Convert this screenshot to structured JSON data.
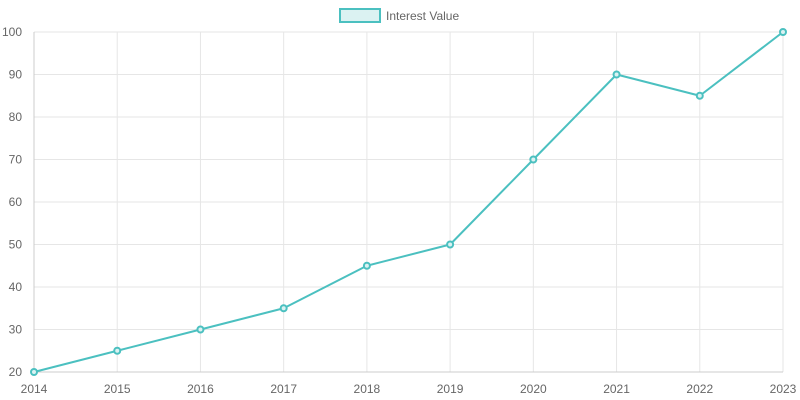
{
  "chart_data": {
    "type": "line",
    "categories": [
      "2014",
      "2015",
      "2016",
      "2017",
      "2018",
      "2019",
      "2020",
      "2021",
      "2022",
      "2023"
    ],
    "series": [
      {
        "name": "Interest Value",
        "values": [
          20,
          25,
          30,
          35,
          45,
          50,
          70,
          90,
          85,
          100
        ],
        "color": "#4bc0c0",
        "fill": "#dbf2f2"
      }
    ],
    "ylim": [
      20,
      100
    ],
    "yticks": [
      "100",
      "90",
      "80",
      "70",
      "60",
      "50",
      "40",
      "30",
      "20"
    ],
    "grid": true,
    "legend_position": "top-center",
    "title": "",
    "xlabel": "",
    "ylabel": ""
  }
}
